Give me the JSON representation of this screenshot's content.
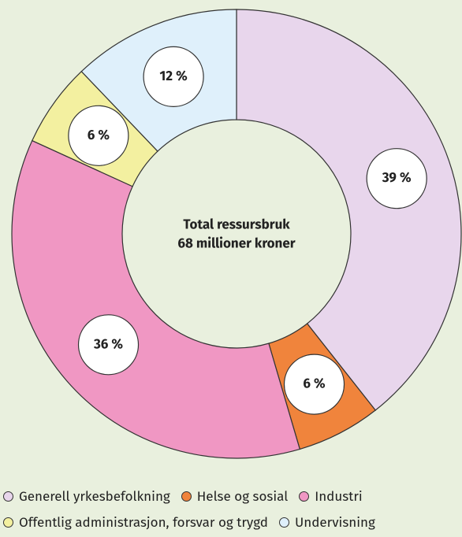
{
  "chart_data": {
    "type": "donut",
    "center_text": [
      "Total ressursbruk",
      "68 millioner kroner"
    ],
    "categories": [
      "Generell yrkesbefolkning",
      "Helse og sosial",
      "Industri",
      "Offentlig administrasjon, forsvar og trygd",
      "Undervisning"
    ],
    "values": [
      39,
      6,
      36,
      6,
      12
    ],
    "value_labels": [
      "39 %",
      "6 %",
      "36 %",
      "6 %",
      "12 %"
    ],
    "colors": [
      "#e8d6ec",
      "#f0843c",
      "#f097c3",
      "#f3f0a0",
      "#dff0fb"
    ],
    "legend": "bottom"
  }
}
